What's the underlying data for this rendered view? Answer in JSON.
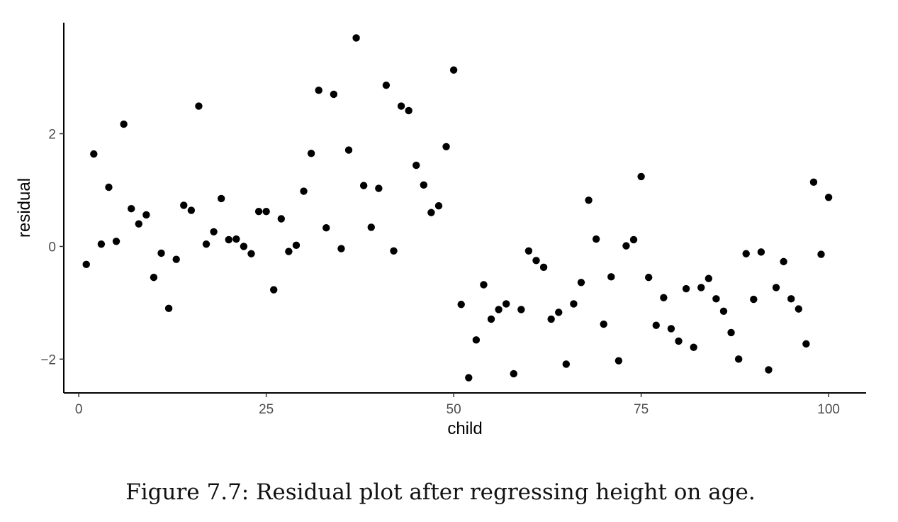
{
  "caption": "Figure 7.7: Residual plot after regressing height on age.",
  "chart_data": {
    "type": "scatter",
    "xlabel": "child",
    "ylabel": "residual",
    "xlim": [
      -2,
      105
    ],
    "ylim": [
      -2.6,
      3.97
    ],
    "x_ticks": [
      0,
      25,
      50,
      75,
      100
    ],
    "x_tick_labels": [
      "0",
      "25",
      "50",
      "75",
      "100"
    ],
    "y_ticks": [
      -2,
      0,
      2
    ],
    "y_tick_labels": [
      "−2",
      "0",
      "2"
    ],
    "grid": false,
    "point_color": "#000000",
    "series": [
      {
        "x": [
          1,
          2,
          3,
          4,
          5,
          6,
          7,
          8,
          9,
          10,
          11,
          12,
          13,
          14,
          15,
          16,
          17,
          18,
          19,
          20,
          21,
          22,
          23,
          24,
          25,
          26,
          27,
          28,
          29,
          30,
          31,
          32,
          33,
          34,
          35,
          36,
          37,
          38,
          39,
          40,
          41,
          42,
          43,
          44,
          45,
          46,
          47,
          48,
          49,
          50,
          51,
          52,
          53,
          54,
          55,
          56,
          57,
          58,
          59,
          60,
          61,
          62,
          63,
          64,
          65,
          66,
          67,
          68,
          69,
          70,
          71,
          72,
          73,
          74,
          75,
          76,
          77,
          78,
          79,
          80,
          81,
          82,
          83,
          84,
          85,
          86,
          87,
          88,
          89,
          90,
          91,
          92,
          93,
          94,
          95,
          96,
          97,
          98,
          99,
          100
        ],
        "y": [
          -0.32,
          1.64,
          0.04,
          1.05,
          0.09,
          2.17,
          0.67,
          0.4,
          0.56,
          -0.55,
          -0.12,
          -1.1,
          -0.23,
          0.73,
          0.64,
          2.49,
          0.04,
          0.26,
          0.85,
          0.12,
          0.13,
          0.0,
          -0.13,
          0.62,
          0.62,
          -0.77,
          0.49,
          -0.09,
          0.02,
          0.98,
          1.65,
          2.77,
          0.33,
          2.7,
          -0.04,
          1.71,
          3.7,
          1.08,
          0.34,
          1.03,
          2.86,
          -0.08,
          2.49,
          2.41,
          1.44,
          1.09,
          0.6,
          0.72,
          1.77,
          3.13,
          -1.03,
          -2.33,
          -1.66,
          -0.68,
          -1.29,
          -1.12,
          -1.02,
          -2.26,
          -1.12,
          -0.08,
          -0.25,
          -0.37,
          -1.29,
          -1.17,
          -2.09,
          -1.02,
          -0.64,
          0.82,
          0.13,
          -1.38,
          -0.54,
          -2.03,
          0.01,
          0.12,
          1.24,
          -0.55,
          -1.4,
          -0.91,
          -1.46,
          -1.68,
          -0.75,
          -1.79,
          -0.73,
          -0.57,
          -0.93,
          -1.15,
          -1.53,
          -2.0,
          -0.13,
          -0.94,
          -0.1,
          -2.19,
          -0.73,
          -0.27,
          -0.93,
          -1.11,
          -1.73,
          1.14,
          -0.14,
          0.87
        ]
      }
    ]
  }
}
